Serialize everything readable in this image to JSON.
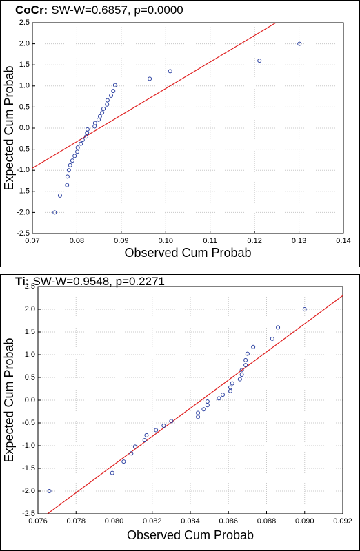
{
  "chart_data": [
    {
      "type": "scatter",
      "title": "CoCr:",
      "subtitle": "SW-W=0.6857, p=0.0000",
      "x_label": "Observed Cum Probab",
      "y_label": "Expected Cum Probab",
      "x": [
        0.075,
        0.0762,
        0.0778,
        0.0779,
        0.0782,
        0.0785,
        0.079,
        0.0795,
        0.0801,
        0.0802,
        0.0809,
        0.0813,
        0.0821,
        0.0823,
        0.0824,
        0.084,
        0.0841,
        0.0849,
        0.0852,
        0.0857,
        0.086,
        0.0868,
        0.0869,
        0.0877,
        0.0882,
        0.0886,
        0.0964,
        0.101,
        0.1211,
        0.1301
      ],
      "values": [
        -2.0,
        -1.6,
        -1.35,
        -1.15,
        -1.0,
        -0.88,
        -0.77,
        -0.66,
        -0.56,
        -0.46,
        -0.37,
        -0.28,
        -0.2,
        -0.11,
        -0.03,
        0.04,
        0.12,
        0.2,
        0.28,
        0.37,
        0.46,
        0.56,
        0.66,
        0.77,
        0.88,
        1.02,
        1.17,
        1.35,
        1.6,
        2.0
      ],
      "color": "#2a3fa0",
      "reference_line": {
        "x": [
          0.07,
          0.1248
        ],
        "y": [
          -0.95,
          2.5
        ],
        "color": "#e02020"
      },
      "xlim": [
        0.07,
        0.14
      ],
      "xticks": [
        0.07,
        0.08,
        0.09,
        {
          "value": 0.1,
          "label": "0.10"
        },
        0.11,
        0.12,
        0.13,
        0.14
      ],
      "ylim": [
        -2.5,
        2.5
      ],
      "yticks": [
        2.5,
        {
          "value": 2,
          "label": "2.0"
        },
        1.5,
        {
          "value": 1,
          "label": "1.0"
        },
        0.5,
        {
          "value": 0,
          "label": "0.0"
        },
        -0.5,
        {
          "value": -1,
          "label": "-1.0"
        },
        -1.5,
        {
          "value": -2,
          "label": "-2.0"
        },
        -2.5
      ],
      "grid": true
    },
    {
      "type": "scatter",
      "title": "Ti:",
      "subtitle": "SW-W=0.9548, p=0.2271",
      "x_label": "Observed Cum Probab",
      "y_label": "Expected Cum Probab",
      "x": [
        0.0766,
        0.0799,
        0.0805,
        0.0809,
        0.0811,
        0.0816,
        0.0817,
        0.0822,
        0.0826,
        0.083,
        0.0844,
        0.0844,
        0.0847,
        0.0849,
        0.0849,
        0.0855,
        0.0857,
        0.0861,
        0.0861,
        0.0862,
        0.0866,
        0.0867,
        0.0867,
        0.0869,
        0.0869,
        0.087,
        0.0873,
        0.0883,
        0.0886,
        0.09
      ],
      "values": [
        -2.0,
        -1.6,
        -1.35,
        -1.17,
        -1.02,
        -0.88,
        -0.77,
        -0.66,
        -0.56,
        -0.46,
        -0.37,
        -0.28,
        -0.2,
        -0.11,
        -0.03,
        0.04,
        0.12,
        0.2,
        0.28,
        0.37,
        0.46,
        0.56,
        0.66,
        0.77,
        0.88,
        1.02,
        1.17,
        1.35,
        1.6,
        2.0
      ],
      "color": "#2a3fa0",
      "reference_line": {
        "x": [
          0.0765,
          0.092
        ],
        "y": [
          -2.5,
          2.3
        ],
        "color": "#e02020"
      },
      "xlim": [
        0.076,
        0.092
      ],
      "xticks": [
        0.076,
        0.078,
        {
          "value": 0.08,
          "label": "0.080"
        },
        0.082,
        0.084,
        0.086,
        0.088,
        {
          "value": 0.09,
          "label": "0.090"
        },
        0.092
      ],
      "ylim": [
        -2.5,
        2.5
      ],
      "yticks": [
        2.5,
        {
          "value": 2,
          "label": "2.0"
        },
        1.5,
        {
          "value": 1,
          "label": "1.0"
        },
        0.5,
        {
          "value": 0,
          "label": "0.0"
        },
        -0.5,
        {
          "value": -1,
          "label": "-1.0"
        },
        -1.5,
        {
          "value": -2,
          "label": "-2.0"
        },
        -2.5
      ],
      "grid": true
    }
  ]
}
